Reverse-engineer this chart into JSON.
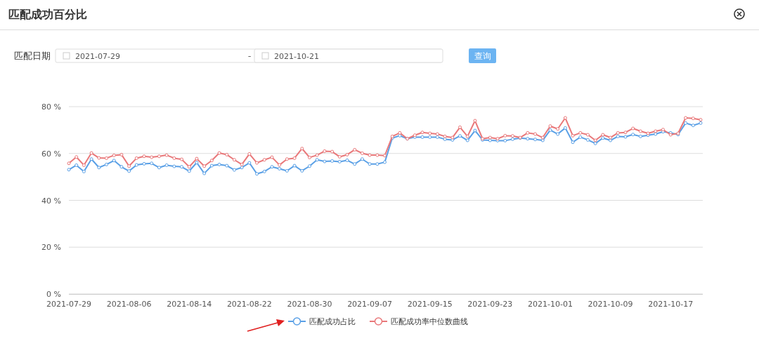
{
  "chart_data": {
    "type": "line",
    "title": "匹配成功百分比",
    "annotations": [
      "匹配日期",
      "2021-07-29",
      "-",
      "2021-10-21",
      "查询"
    ],
    "categories": [
      "2021-07-29",
      null,
      null,
      null,
      null,
      null,
      null,
      null,
      "2021-08-06",
      null,
      null,
      null,
      null,
      null,
      null,
      null,
      "2021-08-14",
      null,
      null,
      null,
      null,
      null,
      null,
      null,
      "2021-08-22",
      null,
      null,
      null,
      null,
      null,
      null,
      null,
      "2021-08-30",
      null,
      null,
      null,
      null,
      null,
      null,
      null,
      "2021-09-07",
      null,
      null,
      null,
      null,
      null,
      null,
      null,
      "2021-09-15",
      null,
      null,
      null,
      null,
      null,
      null,
      null,
      "2021-09-23",
      null,
      null,
      null,
      null,
      null,
      null,
      null,
      "2021-10-01",
      null,
      null,
      null,
      null,
      null,
      null,
      null,
      "2021-10-09",
      null,
      null,
      null,
      null,
      null,
      null,
      null,
      "2021-10-17",
      null,
      null,
      null,
      null
    ],
    "series": [
      {
        "name": "匹配成功占比",
        "color": "#5aa0e6",
        "values": [
          53.1,
          55,
          52.3,
          57.6,
          54,
          55.3,
          57,
          54.3,
          52.5,
          55.1,
          55.6,
          55.8,
          54,
          55,
          54.5,
          54.3,
          52.5,
          56.1,
          51.5,
          54.8,
          55.3,
          54.8,
          53,
          54,
          56,
          51.3,
          52.3,
          54.3,
          53.5,
          52.6,
          54.8,
          52.6,
          54.6,
          57.3,
          56.6,
          56.8,
          56.5,
          57.1,
          55.5,
          57.6,
          55.5,
          55.5,
          56.3,
          66.6,
          67.6,
          66.3,
          67,
          67,
          67,
          67,
          66.1,
          65.8,
          67.5,
          65.6,
          69.8,
          65.8,
          65.6,
          65.5,
          65.5,
          66.1,
          66.6,
          66.3,
          66,
          65.6,
          70,
          68.3,
          70.9,
          64.8,
          67,
          65.8,
          64.3,
          66.6,
          65.6,
          67.3,
          67.1,
          68.1,
          67.3,
          67.8,
          68.3,
          69.3,
          68.8,
          68.1,
          73,
          72,
          73
        ]
      },
      {
        "name": "匹配成功率中位数曲线",
        "color": "#e9787a",
        "values": [
          55.8,
          58.5,
          55,
          60.2,
          58.1,
          58,
          59.2,
          59.5,
          54.6,
          58,
          58.8,
          58.4,
          58.8,
          59.3,
          58,
          57.5,
          54.3,
          57.8,
          54.6,
          57,
          60.2,
          59.5,
          57.3,
          55.3,
          59.8,
          56,
          57.3,
          58.4,
          55.1,
          57.6,
          58,
          62.1,
          58.3,
          59.3,
          61,
          60.8,
          58.6,
          59.5,
          61.6,
          60.1,
          59.3,
          59.3,
          59.1,
          67.3,
          68.8,
          66.3,
          67.8,
          69,
          68.6,
          68.3,
          67.3,
          66.8,
          71.2,
          67.3,
          74,
          66.3,
          66.8,
          66.3,
          67.6,
          67.5,
          66.8,
          68.8,
          68.3,
          66.8,
          71.7,
          70.5,
          75.2,
          67.6,
          68.8,
          68,
          65.6,
          68,
          66.8,
          68.8,
          69,
          70.7,
          69.5,
          68.6,
          69.5,
          70.2,
          68,
          68.6,
          75.2,
          75,
          74.4
        ]
      }
    ],
    "ylim": [
      0,
      80
    ],
    "yticks": [
      {
        "value": 0,
        "label": "0 %"
      },
      {
        "value": 20,
        "label": "20 %"
      },
      {
        "value": 40,
        "label": "40 %"
      },
      {
        "value": 60,
        "label": "60 %"
      },
      {
        "value": 80,
        "label": "80 %"
      }
    ],
    "grid": "y",
    "legend": "bottom",
    "marker": "circle",
    "line_style": "solid"
  }
}
